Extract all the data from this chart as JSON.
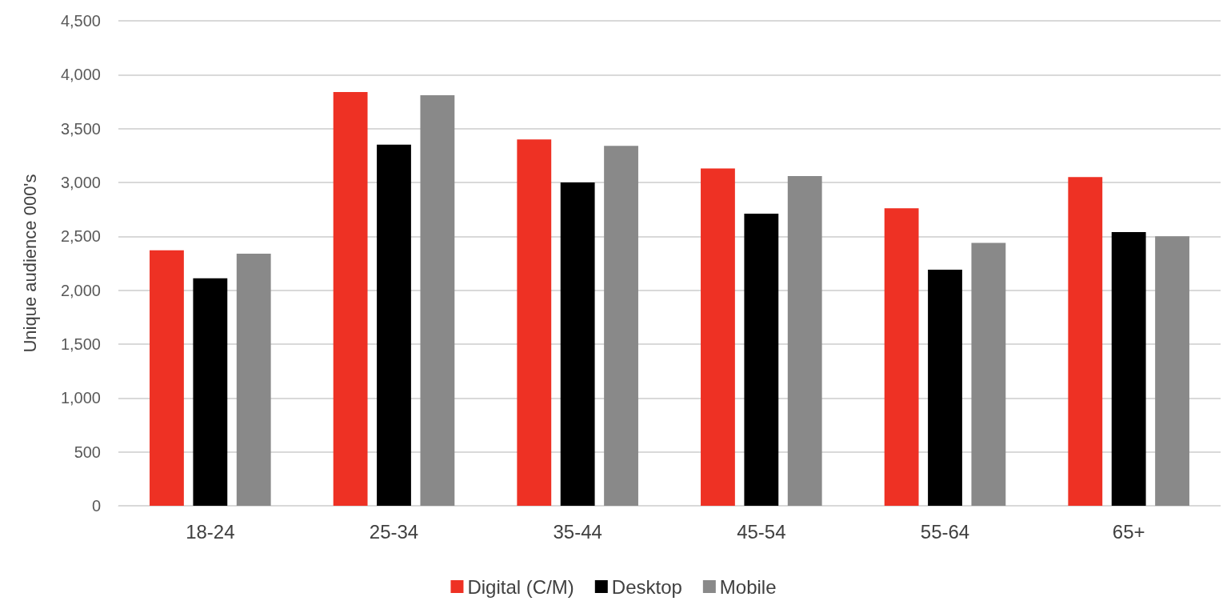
{
  "chart_data": {
    "type": "bar",
    "ylabel": "Unique audience 000's",
    "categories": [
      "18-24",
      "25-34",
      "35-44",
      "45-54",
      "55-64",
      "65+"
    ],
    "series": [
      {
        "name": "Digital (C/M)",
        "color": "#ee3124",
        "values": [
          2370,
          3840,
          3400,
          3130,
          2760,
          3050
        ]
      },
      {
        "name": "Desktop",
        "color": "#000000",
        "values": [
          2110,
          3350,
          3000,
          2710,
          2190,
          2540
        ]
      },
      {
        "name": "Mobile",
        "color": "#898989",
        "values": [
          2340,
          3810,
          3340,
          3060,
          2440,
          2500
        ]
      }
    ],
    "ylim": [
      0,
      4500
    ],
    "yticks": [
      0,
      500,
      {
        "value": 1000,
        "label": "1,000"
      },
      {
        "value": 1500,
        "label": "1,500"
      },
      {
        "value": 2000,
        "label": "2,000"
      },
      {
        "value": 2500,
        "label": "2,500"
      },
      {
        "value": 3000,
        "label": "3,000"
      },
      {
        "value": 3500,
        "label": "3,500"
      },
      {
        "value": 4000,
        "label": "4,000"
      },
      {
        "value": 4500,
        "label": "4,500"
      }
    ],
    "grid": "y",
    "legend": "bottom"
  }
}
